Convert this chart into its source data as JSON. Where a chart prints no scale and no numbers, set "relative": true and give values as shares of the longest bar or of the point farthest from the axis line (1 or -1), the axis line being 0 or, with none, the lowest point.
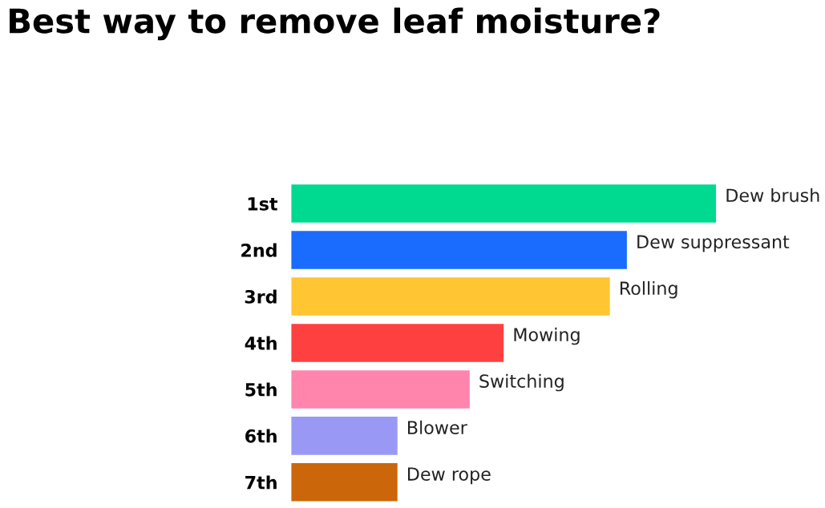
{
  "chart_data": {
    "type": "bar",
    "orientation": "horizontal",
    "relative": true,
    "title": "Best way to remove leaf moisture?",
    "categories": [
      "1st",
      "2nd",
      "3rd",
      "4th",
      "5th",
      "6th",
      "7th"
    ],
    "values": [
      1,
      0.79,
      0.75,
      0.5,
      0.42,
      0.25,
      0.25
    ],
    "colors": [
      "#00d990",
      "#1a6bff",
      "#ffc533",
      "#ff4040",
      "#ff85ad",
      "#9999f5",
      "#cc660a"
    ],
    "tick_labels": "y",
    "annotations": [
      {
        "text": "Dew brush",
        "x": 1,
        "y": "1st"
      },
      {
        "text": "Dew suppressant",
        "x": 0.79,
        "y": "2nd"
      },
      {
        "text": "Rolling",
        "x": 0.75,
        "y": "3rd"
      },
      {
        "text": "Mowing",
        "x": 0.5,
        "y": "4th"
      },
      {
        "text": "Switching",
        "x": 0.42,
        "y": "5th"
      },
      {
        "text": "Blower",
        "x": 0.25,
        "y": "6th"
      },
      {
        "text": "Dew rope",
        "x": 0.25,
        "y": "7th"
      }
    ]
  }
}
